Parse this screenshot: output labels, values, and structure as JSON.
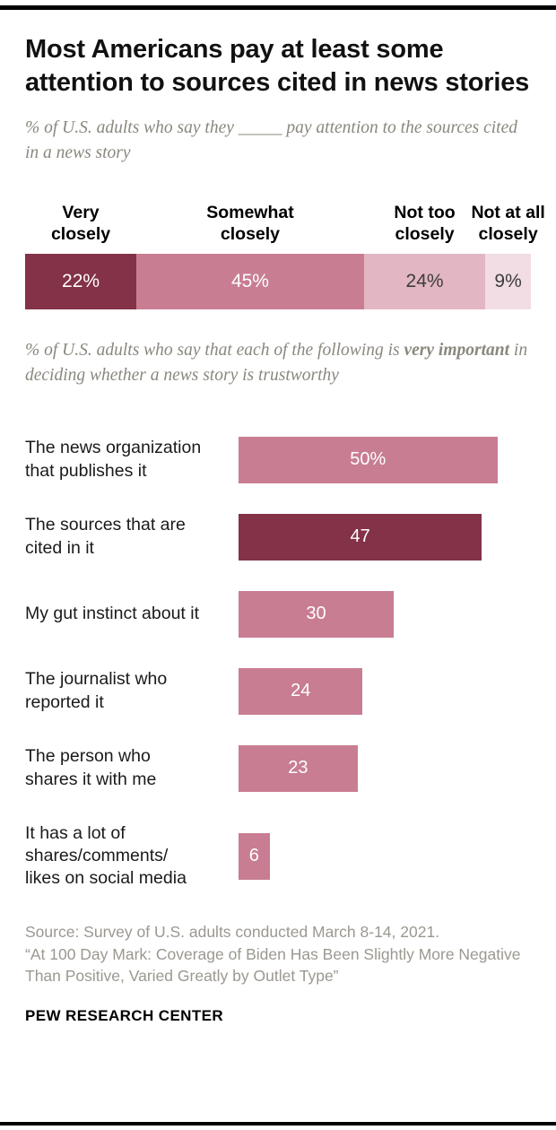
{
  "header": {
    "title": "Most Americans pay at least some attention to sources cited in news stories",
    "subtitle_1": "% of U.S. adults who say they _____ pay attention to the sources cited in a news story",
    "subtitle_2_prefix": "% of U.S. adults who say that each of the following is ",
    "subtitle_2_bold": "very important",
    "subtitle_2_suffix": " in deciding whether a news story is trustworthy"
  },
  "colors": {
    "dark_maroon": "#833247",
    "medium_pink": "#c87d92",
    "light_pink": "#e2b6c3",
    "lightest_pink": "#f2dde4"
  },
  "chart_data": [
    {
      "type": "bar",
      "subtype": "stacked-horizontal",
      "title": "% of U.S. adults who say they _____ pay attention to the sources cited in a news story",
      "segments": [
        {
          "label": "Very closely",
          "label_lines": [
            "Very",
            "closely"
          ],
          "value": 22,
          "value_label": "22%",
          "color": "#833247",
          "text_color": "#ffffff"
        },
        {
          "label": "Somewhat closely",
          "label_lines": [
            "Somewhat",
            "closely"
          ],
          "value": 45,
          "value_label": "45%",
          "color": "#c87d92",
          "text_color": "#ffffff"
        },
        {
          "label": "Not too closely",
          "label_lines": [
            "Not too",
            "closely"
          ],
          "value": 24,
          "value_label": "24%",
          "color": "#e2b6c3",
          "text_color": "#3c3c3c"
        },
        {
          "label": "Not at all closely",
          "label_lines": [
            "Not at all",
            "closely"
          ],
          "value": 9,
          "value_label": "9%",
          "color": "#f2dde4",
          "text_color": "#3c3c3c"
        }
      ],
      "xlim": [
        0,
        100
      ]
    },
    {
      "type": "bar",
      "subtype": "horizontal",
      "title": "% of U.S. adults who say that each of the following is very important in deciding whether a news story is trustworthy",
      "categories": [
        "The news organization that publishes it",
        "The sources that are cited in it",
        "My gut instinct about it",
        "The journalist who reported it",
        "The person who shares it with me",
        "It has a lot of shares/comments/likes on social media"
      ],
      "category_lines": [
        [
          "The news organization",
          "that publishes it"
        ],
        [
          "The sources that are",
          "cited in it"
        ],
        [
          "My gut instinct about it"
        ],
        [
          "The journalist who",
          "reported it"
        ],
        [
          "The person who",
          "shares it with me"
        ],
        [
          "It has a lot of",
          "shares/comments/",
          "likes on social media"
        ]
      ],
      "values": [
        50,
        47,
        30,
        24,
        23,
        6
      ],
      "value_labels": [
        "50%",
        "47",
        "30",
        "24",
        "23",
        "6"
      ],
      "bar_colors": [
        "#c87d92",
        "#833247",
        "#c87d92",
        "#c87d92",
        "#c87d92",
        "#c87d92"
      ],
      "xlim": [
        0,
        50
      ]
    }
  ],
  "footer": {
    "source_line_1": "Source: Survey of U.S. adults conducted March 8-14, 2021.",
    "source_line_2": "“At 100 Day Mark: Coverage of Biden Has Been Slightly More Negative Than Positive, Varied Greatly by Outlet Type”",
    "brand": "PEW RESEARCH CENTER"
  }
}
